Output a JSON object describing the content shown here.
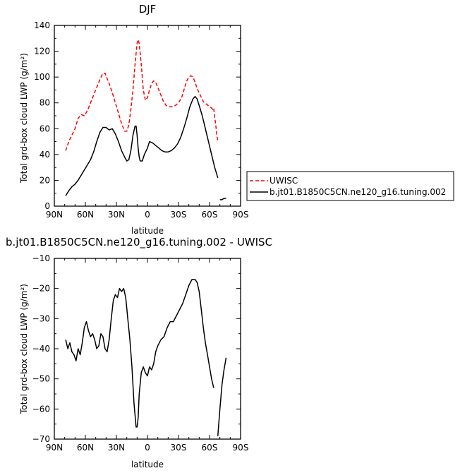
{
  "chart_data": [
    {
      "type": "line",
      "title": "DJF",
      "xlabel": "latitude",
      "ylabel": "Total grd-box cloud LWP (g/m²)",
      "xlim": [
        90,
        -90
      ],
      "ylim": [
        0,
        140
      ],
      "x_tick_values": [
        90,
        60,
        30,
        0,
        -30,
        -60,
        -90
      ],
      "x_tick_labels": [
        "90N",
        "60N",
        "30N",
        "0",
        "30S",
        "60S",
        "90S"
      ],
      "y_ticks": [
        0,
        20,
        40,
        60,
        80,
        100,
        120,
        140
      ],
      "legend_position": "right",
      "series": [
        {
          "name": "UWISC",
          "color": "#ff0000",
          "dash": "dashed",
          "segments": [
            [
              [
                79,
                43
              ],
              [
                76,
                50
              ],
              [
                73,
                55
              ],
              [
                70,
                60
              ],
              [
                67,
                68
              ],
              [
                64,
                71
              ],
              [
                61,
                70
              ],
              [
                58,
                74
              ],
              [
                55,
                80
              ],
              [
                52,
                86
              ],
              [
                49,
                92
              ],
              [
                46,
                98
              ],
              [
                43,
                103
              ],
              [
                41,
                103
              ],
              [
                39,
                99
              ],
              [
                37,
                95
              ],
              [
                34,
                88
              ],
              [
                31,
                80
              ],
              [
                28,
                72
              ],
              [
                25,
                64
              ],
              [
                22,
                58
              ],
              [
                20,
                58
              ],
              [
                18,
                63
              ],
              [
                16,
                75
              ],
              [
                14,
                90
              ],
              [
                12,
                110
              ],
              [
                10,
                126
              ],
              [
                9,
                129
              ],
              [
                8,
                126
              ],
              [
                6,
                110
              ],
              [
                4,
                90
              ],
              [
                2,
                82
              ],
              [
                0,
                84
              ],
              [
                -2,
                90
              ],
              [
                -4,
                95
              ],
              [
                -6,
                97
              ],
              [
                -8,
                96
              ],
              [
                -10,
                92
              ],
              [
                -12,
                88
              ],
              [
                -15,
                82
              ],
              [
                -18,
                78
              ],
              [
                -21,
                77
              ],
              [
                -24,
                77
              ],
              [
                -27,
                78
              ],
              [
                -30,
                80
              ],
              [
                -33,
                84
              ],
              [
                -36,
                92
              ],
              [
                -38,
                97
              ],
              [
                -40,
                100
              ],
              [
                -42,
                101
              ],
              [
                -44,
                100
              ],
              [
                -46,
                96
              ],
              [
                -48,
                91
              ],
              [
                -51,
                86
              ],
              [
                -54,
                81
              ],
              [
                -57,
                79
              ],
              [
                -60,
                77
              ],
              [
                -62,
                76
              ],
              [
                -63,
                75
              ],
              [
                -64,
                76
              ],
              [
                -65,
                69
              ],
              [
                -66,
                63
              ],
              [
                -67,
                55
              ],
              [
                -68,
                50
              ]
            ]
          ]
        },
        {
          "name": "b.jt01.B1850C5CN.ne120_g16.tuning.002",
          "color": "#000000",
          "dash": "solid",
          "segments": [
            [
              [
                79,
                8
              ],
              [
                76,
                12
              ],
              [
                73,
                15
              ],
              [
                70,
                17
              ],
              [
                67,
                20
              ],
              [
                64,
                24
              ],
              [
                61,
                28
              ],
              [
                58,
                32
              ],
              [
                55,
                36
              ],
              [
                52,
                42
              ],
              [
                49,
                50
              ],
              [
                46,
                57
              ],
              [
                43,
                61
              ],
              [
                40,
                61
              ],
              [
                37,
                59
              ],
              [
                34,
                60
              ],
              [
                31,
                56
              ],
              [
                28,
                50
              ],
              [
                25,
                43
              ],
              [
                22,
                38
              ],
              [
                20,
                35
              ],
              [
                18,
                36
              ],
              [
                16,
                43
              ],
              [
                14,
                55
              ],
              [
                12,
                62
              ],
              [
                11,
                62
              ],
              [
                10,
                55
              ],
              [
                9,
                45
              ],
              [
                8,
                38
              ],
              [
                7,
                35
              ],
              [
                5,
                35
              ],
              [
                3,
                40
              ],
              [
                0,
                45
              ],
              [
                -2,
                50
              ],
              [
                -5,
                49
              ],
              [
                -8,
                47
              ],
              [
                -11,
                45
              ],
              [
                -14,
                43
              ],
              [
                -17,
                42
              ],
              [
                -20,
                42
              ],
              [
                -23,
                43
              ],
              [
                -26,
                45
              ],
              [
                -29,
                48
              ],
              [
                -32,
                53
              ],
              [
                -35,
                60
              ],
              [
                -38,
                68
              ],
              [
                -41,
                77
              ],
              [
                -44,
                83
              ],
              [
                -46,
                85
              ],
              [
                -48,
                83
              ],
              [
                -50,
                78
              ],
              [
                -53,
                70
              ],
              [
                -56,
                60
              ],
              [
                -59,
                50
              ],
              [
                -62,
                40
              ],
              [
                -65,
                30
              ],
              [
                -68,
                22
              ]
            ],
            [
              [
                -70,
                5
              ],
              [
                -72,
                5
              ],
              [
                -74,
                6
              ],
              [
                -76,
                6
              ]
            ]
          ]
        }
      ]
    },
    {
      "type": "line",
      "title": "b.jt01.B1850C5CN.ne120_g16.tuning.002 - UWISC",
      "xlabel": "latitude",
      "ylabel": "Total grd-box cloud LWP (g/m²)",
      "xlim": [
        90,
        -90
      ],
      "ylim": [
        -70,
        -10
      ],
      "x_tick_values": [
        90,
        60,
        30,
        0,
        -30,
        -60,
        -90
      ],
      "x_tick_labels": [
        "90N",
        "60N",
        "30N",
        "0",
        "30S",
        "60S",
        "90S"
      ],
      "y_ticks": [
        -70,
        -60,
        -50,
        -40,
        -30,
        -20,
        -10
      ],
      "series": [
        {
          "color": "#000000",
          "dash": "solid",
          "segments": [
            [
              [
                79,
                -37
              ],
              [
                77,
                -40
              ],
              [
                75,
                -38
              ],
              [
                73,
                -41
              ],
              [
                71,
                -42
              ],
              [
                69,
                -44
              ],
              [
                67,
                -40
              ],
              [
                65,
                -42
              ],
              [
                63,
                -38
              ],
              [
                61,
                -33
              ],
              [
                59,
                -31
              ],
              [
                57,
                -34
              ],
              [
                55,
                -36
              ],
              [
                53,
                -35
              ],
              [
                51,
                -37
              ],
              [
                49,
                -40
              ],
              [
                47,
                -39
              ],
              [
                45,
                -35
              ],
              [
                43,
                -36
              ],
              [
                41,
                -40
              ],
              [
                39,
                -41
              ],
              [
                37,
                -37
              ],
              [
                35,
                -30
              ],
              [
                33,
                -24
              ],
              [
                31,
                -22
              ],
              [
                29,
                -23
              ],
              [
                27,
                -20
              ],
              [
                25,
                -21
              ],
              [
                23,
                -20
              ],
              [
                21,
                -23
              ],
              [
                19,
                -30
              ],
              [
                17,
                -37
              ],
              [
                15,
                -46
              ],
              [
                13,
                -58
              ],
              [
                11,
                -66
              ],
              [
                10,
                -66
              ],
              [
                9,
                -63
              ],
              [
                8,
                -55
              ],
              [
                6,
                -48
              ],
              [
                4,
                -46
              ],
              [
                2,
                -48
              ],
              [
                0,
                -49
              ],
              [
                -2,
                -46
              ],
              [
                -4,
                -47
              ],
              [
                -6,
                -45
              ],
              [
                -8,
                -41
              ],
              [
                -10,
                -39
              ],
              [
                -13,
                -37
              ],
              [
                -16,
                -36
              ],
              [
                -19,
                -33
              ],
              [
                -22,
                -31
              ],
              [
                -25,
                -31
              ],
              [
                -28,
                -29
              ],
              [
                -31,
                -27
              ],
              [
                -34,
                -25
              ],
              [
                -37,
                -22
              ],
              [
                -40,
                -19
              ],
              [
                -43,
                -17
              ],
              [
                -46,
                -17
              ],
              [
                -48,
                -18
              ],
              [
                -50,
                -21
              ],
              [
                -52,
                -27
              ],
              [
                -54,
                -33
              ],
              [
                -56,
                -38
              ],
              [
                -58,
                -42
              ],
              [
                -60,
                -46
              ],
              [
                -62,
                -50
              ],
              [
                -64,
                -53
              ]
            ],
            [
              [
                -68,
                -69
              ],
              [
                -70,
                -60
              ],
              [
                -72,
                -52
              ],
              [
                -74,
                -47
              ],
              [
                -76,
                -43
              ]
            ]
          ]
        }
      ]
    }
  ]
}
